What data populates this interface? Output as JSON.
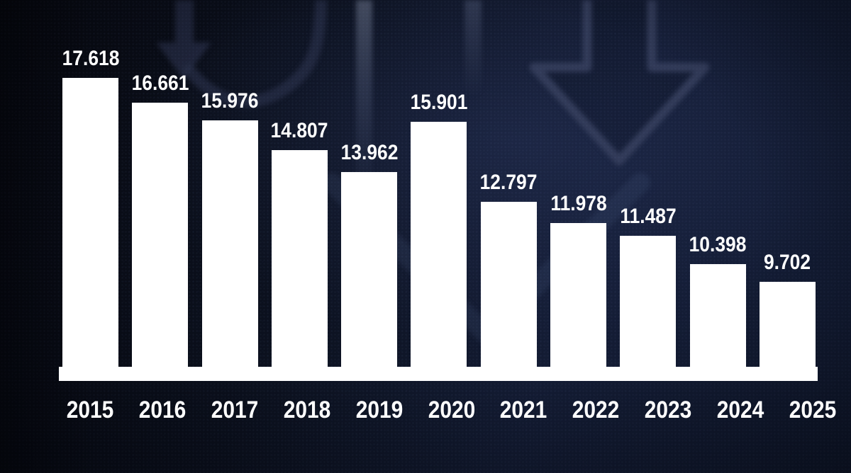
{
  "chart_data": {
    "type": "bar",
    "categories": [
      "2015",
      "2016",
      "2017",
      "2018",
      "2019",
      "2020",
      "2021",
      "2022",
      "2023",
      "2024",
      "2025"
    ],
    "values": [
      17618,
      16661,
      15976,
      14807,
      13962,
      15901,
      12797,
      11978,
      11487,
      10398,
      9702
    ],
    "value_labels": [
      "17.618",
      "16.661",
      "15.976",
      "14.807",
      "13.962",
      "15.901",
      "12.797",
      "11.978",
      "11.487",
      "10.398",
      "9.702"
    ],
    "title": "",
    "xlabel": "",
    "ylabel": "",
    "ylim": [
      6400,
      18000
    ],
    "grid": false,
    "legend_position": "none",
    "bar_color": "#ffffff",
    "label_color": "#ffffff",
    "axis_line_color": "#ffffff",
    "background_color": "#0e1628",
    "watermark_color": "#2e3550",
    "watermark_icons": [
      "down-arrow-icon",
      "down-arrow-outline-icon"
    ]
  }
}
